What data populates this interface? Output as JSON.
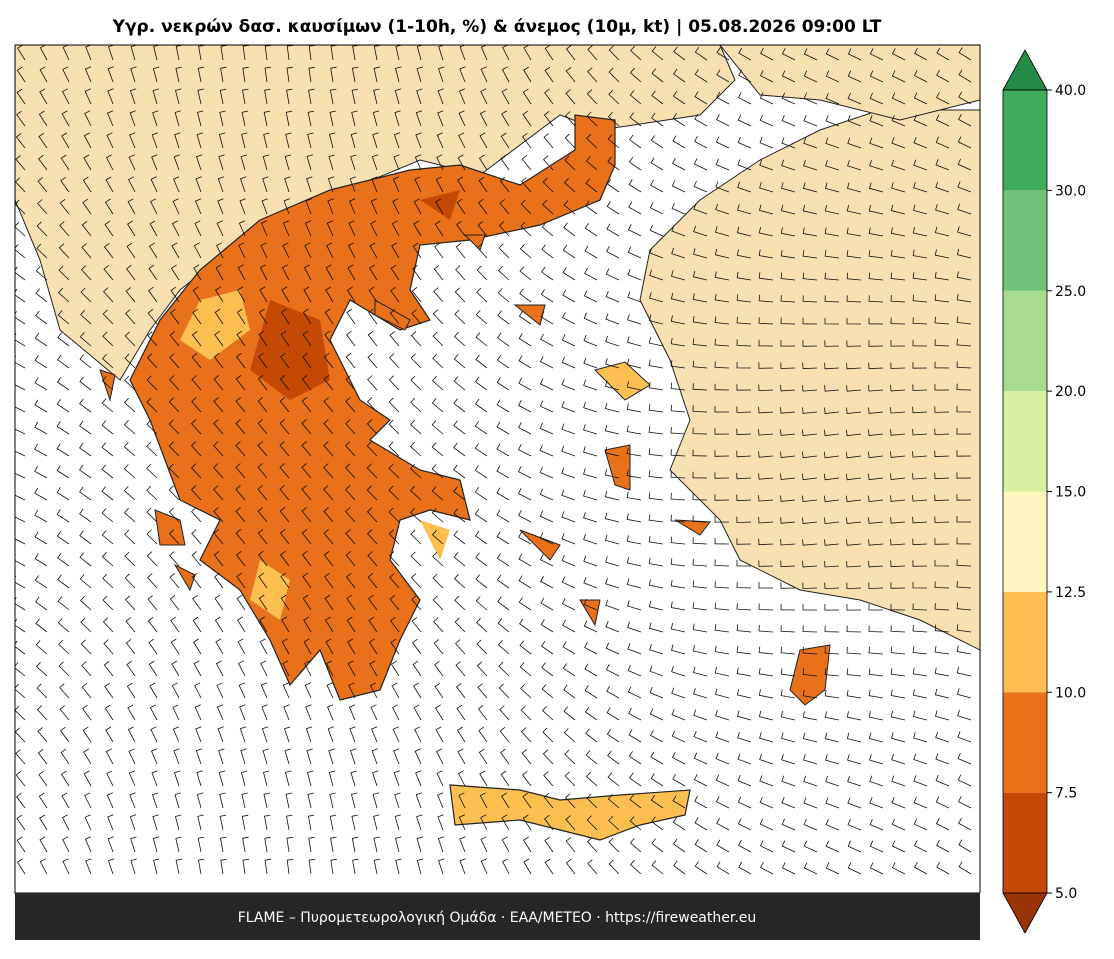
{
  "header": {
    "title": "Υγρ. νεκρών δασ. καυσίμων (1-10h, %) & άνεμος (10μ, kt)  |  05.08.2026 09:00 LT"
  },
  "footer": {
    "text": "FLAME – Πυρομετεωρολογική Ομάδα · ΕΑΑ/METEO · https://fireweather.eu"
  },
  "colorbar": {
    "ticks": [
      {
        "value": 5,
        "label": "5.0"
      },
      {
        "value": 7.5,
        "label": "7.5"
      },
      {
        "value": 10,
        "label": "10.0"
      },
      {
        "value": 12.5,
        "label": "12.5"
      },
      {
        "value": 15,
        "label": "15.0"
      },
      {
        "value": 20,
        "label": "20.0"
      },
      {
        "value": 25,
        "label": "25.0"
      },
      {
        "value": 30,
        "label": "30.0"
      },
      {
        "value": 40,
        "label": "40.0"
      }
    ],
    "colors": [
      "#c44a04",
      "#e8711a",
      "#fdbf50",
      "#fff5c0",
      "#d9efa0",
      "#a8dc8c",
      "#72c27a",
      "#3fad5c"
    ],
    "under_color": "#993404",
    "over_color": "#238b45"
  }
}
